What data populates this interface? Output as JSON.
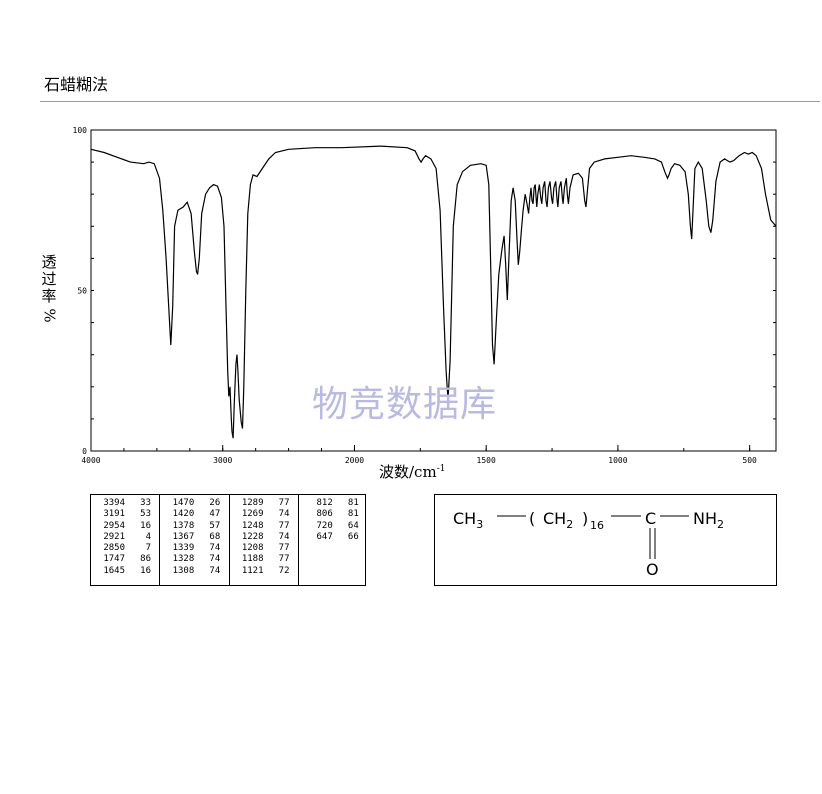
{
  "method_title": "石蜡糊法",
  "watermark": "物竞数据库",
  "chart_data": {
    "type": "line",
    "title": "",
    "xlabel_main": "波数/cm",
    "xlabel_exp": "-1",
    "ylabel_chars": [
      "透",
      "过",
      "率"
    ],
    "ylabel_unit": "%",
    "xlim": [
      4000,
      400
    ],
    "ylim": [
      0,
      100
    ],
    "x_ticks": [
      4000,
      3000,
      2000,
      1500,
      1000,
      500
    ],
    "y_ticks": [
      0,
      50,
      100
    ],
    "grid": false,
    "series": [
      {
        "color": "#000000",
        "points": [
          [
            4000,
            94
          ],
          [
            3900,
            93
          ],
          [
            3800,
            91.5
          ],
          [
            3700,
            90
          ],
          [
            3600,
            89.5
          ],
          [
            3560,
            90
          ],
          [
            3520,
            89.5
          ],
          [
            3480,
            85
          ],
          [
            3455,
            75
          ],
          [
            3430,
            60
          ],
          [
            3410,
            45
          ],
          [
            3394,
            33
          ],
          [
            3380,
            45
          ],
          [
            3365,
            70
          ],
          [
            3340,
            75
          ],
          [
            3300,
            76
          ],
          [
            3270,
            77.5
          ],
          [
            3240,
            74
          ],
          [
            3215,
            62
          ],
          [
            3200,
            56
          ],
          [
            3191,
            55
          ],
          [
            3178,
            60
          ],
          [
            3160,
            74
          ],
          [
            3130,
            80
          ],
          [
            3100,
            82
          ],
          [
            3070,
            83
          ],
          [
            3040,
            82.5
          ],
          [
            3010,
            79
          ],
          [
            2990,
            70
          ],
          [
            2975,
            45
          ],
          [
            2962,
            25
          ],
          [
            2954,
            17
          ],
          [
            2945,
            20
          ],
          [
            2935,
            10
          ],
          [
            2930,
            6
          ],
          [
            2921,
            4
          ],
          [
            2912,
            15
          ],
          [
            2900,
            27
          ],
          [
            2892,
            30
          ],
          [
            2885,
            25
          ],
          [
            2875,
            16
          ],
          [
            2860,
            9
          ],
          [
            2850,
            7
          ],
          [
            2840,
            20
          ],
          [
            2825,
            50
          ],
          [
            2810,
            74
          ],
          [
            2790,
            83
          ],
          [
            2770,
            86
          ],
          [
            2740,
            85.5
          ],
          [
            2700,
            88
          ],
          [
            2650,
            91
          ],
          [
            2600,
            93
          ],
          [
            2500,
            94
          ],
          [
            2300,
            94.5
          ],
          [
            2100,
            94.5
          ],
          [
            1900,
            95
          ],
          [
            1800,
            94.5
          ],
          [
            1770,
            93.5
          ],
          [
            1755,
            91
          ],
          [
            1747,
            90
          ],
          [
            1740,
            91
          ],
          [
            1730,
            92
          ],
          [
            1710,
            91
          ],
          [
            1690,
            88
          ],
          [
            1675,
            75
          ],
          [
            1662,
            45
          ],
          [
            1652,
            25
          ],
          [
            1645,
            16
          ],
          [
            1637,
            28
          ],
          [
            1625,
            70
          ],
          [
            1610,
            83
          ],
          [
            1590,
            87
          ],
          [
            1560,
            89
          ],
          [
            1520,
            89.5
          ],
          [
            1500,
            89
          ],
          [
            1490,
            83
          ],
          [
            1482,
            55
          ],
          [
            1476,
            33
          ],
          [
            1470,
            27
          ],
          [
            1462,
            40
          ],
          [
            1452,
            55
          ],
          [
            1440,
            63
          ],
          [
            1432,
            67
          ],
          [
            1426,
            58
          ],
          [
            1420,
            47
          ],
          [
            1414,
            60
          ],
          [
            1405,
            78
          ],
          [
            1398,
            82
          ],
          [
            1390,
            78
          ],
          [
            1383,
            66
          ],
          [
            1378,
            58
          ],
          [
            1373,
            62
          ],
          [
            1367,
            68
          ],
          [
            1360,
            75
          ],
          [
            1352,
            80
          ],
          [
            1345,
            77
          ],
          [
            1339,
            74
          ],
          [
            1334,
            79
          ],
          [
            1330,
            82
          ],
          [
            1326,
            78
          ],
          [
            1322,
            77
          ],
          [
            1318,
            82
          ],
          [
            1314,
            83
          ],
          [
            1310,
            78
          ],
          [
            1308,
            76
          ],
          [
            1304,
            80
          ],
          [
            1298,
            83
          ],
          [
            1293,
            79
          ],
          [
            1289,
            77
          ],
          [
            1284,
            82
          ],
          [
            1278,
            84
          ],
          [
            1273,
            78
          ],
          [
            1269,
            76
          ],
          [
            1264,
            82
          ],
          [
            1258,
            84
          ],
          [
            1252,
            79
          ],
          [
            1248,
            77
          ],
          [
            1243,
            82
          ],
          [
            1236,
            84
          ],
          [
            1231,
            78
          ],
          [
            1228,
            76
          ],
          [
            1223,
            82
          ],
          [
            1216,
            84
          ],
          [
            1211,
            79
          ],
          [
            1208,
            77
          ],
          [
            1203,
            82
          ],
          [
            1196,
            85
          ],
          [
            1192,
            80
          ],
          [
            1188,
            77
          ],
          [
            1182,
            82
          ],
          [
            1170,
            86
          ],
          [
            1150,
            86.5
          ],
          [
            1135,
            85
          ],
          [
            1126,
            78
          ],
          [
            1121,
            76
          ],
          [
            1116,
            81
          ],
          [
            1108,
            88
          ],
          [
            1090,
            90
          ],
          [
            1050,
            91
          ],
          [
            1000,
            91.5
          ],
          [
            950,
            92
          ],
          [
            900,
            91.5
          ],
          [
            860,
            91
          ],
          [
            835,
            90
          ],
          [
            822,
            87
          ],
          [
            812,
            85
          ],
          [
            806,
            86
          ],
          [
            798,
            88
          ],
          [
            785,
            89.5
          ],
          [
            765,
            89
          ],
          [
            745,
            87
          ],
          [
            733,
            80
          ],
          [
            725,
            70
          ],
          [
            720,
            66
          ],
          [
            715,
            75
          ],
          [
            708,
            88
          ],
          [
            695,
            90
          ],
          [
            680,
            88
          ],
          [
            665,
            78
          ],
          [
            655,
            70
          ],
          [
            647,
            68
          ],
          [
            640,
            72
          ],
          [
            628,
            84
          ],
          [
            612,
            90
          ],
          [
            595,
            91
          ],
          [
            575,
            90
          ],
          [
            560,
            90.5
          ],
          [
            540,
            92
          ],
          [
            520,
            93
          ],
          [
            505,
            92.5
          ],
          [
            490,
            93
          ],
          [
            475,
            92
          ],
          [
            455,
            88
          ],
          [
            440,
            80
          ],
          [
            420,
            72
          ],
          [
            400,
            70
          ]
        ]
      }
    ]
  },
  "peak_table": {
    "columns": [
      [
        [
          "3394",
          "33"
        ],
        [
          "3191",
          "53"
        ],
        [
          "2954",
          "16"
        ],
        [
          "2921",
          "4"
        ],
        [
          "2850",
          "7"
        ],
        [
          "1747",
          "86"
        ],
        [
          "1645",
          "16"
        ]
      ],
      [
        [
          "1470",
          "26"
        ],
        [
          "1420",
          "47"
        ],
        [
          "1378",
          "57"
        ],
        [
          "1367",
          "68"
        ],
        [
          "1339",
          "74"
        ],
        [
          "1328",
          "74"
        ],
        [
          "1308",
          "74"
        ]
      ],
      [
        [
          "1289",
          "77"
        ],
        [
          "1269",
          "74"
        ],
        [
          "1248",
          "77"
        ],
        [
          "1228",
          "74"
        ],
        [
          "1208",
          "77"
        ],
        [
          "1188",
          "77"
        ],
        [
          "1121",
          "72"
        ]
      ],
      [
        [
          "812",
          "81"
        ],
        [
          "806",
          "81"
        ],
        [
          "720",
          "64"
        ],
        [
          "647",
          "66"
        ]
      ]
    ]
  },
  "structure": {
    "ch3": "CH",
    "ch3_sub": "3",
    "group_open": "(",
    "ch2": "CH",
    "ch2_sub": "2",
    "group_close": ")",
    "repeat": "16",
    "carbon": "C",
    "amine": "NH",
    "amine_sub": "2",
    "oxygen": "O"
  }
}
